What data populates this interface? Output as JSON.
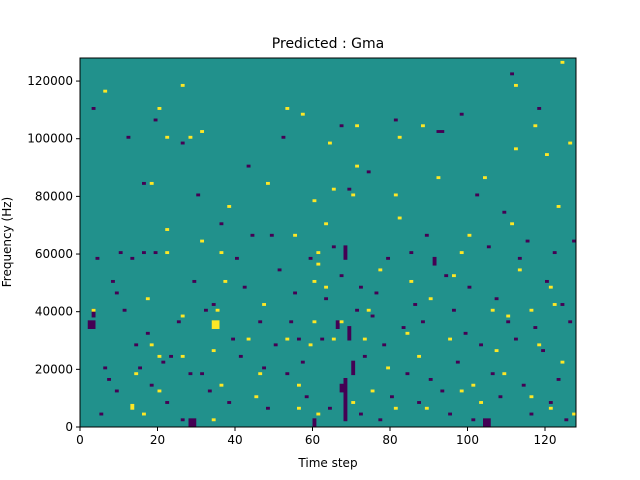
{
  "chart_data": {
    "type": "heatmap",
    "title": "Predicted : Gma",
    "xlabel": "Time step",
    "ylabel": "Frequency (Hz)",
    "xlim": [
      0,
      128
    ],
    "ylim": [
      0,
      128000
    ],
    "x_ticks": [
      0,
      20,
      40,
      60,
      80,
      100,
      120
    ],
    "y_ticks": [
      0,
      20000,
      40000,
      60000,
      80000,
      100000,
      120000
    ],
    "y_tick_labels": [
      "0",
      "20000",
      "40000",
      "60000",
      "80000",
      "100000",
      "120000"
    ],
    "n_time_steps": 128,
    "n_freq_bins": 128,
    "bin_hz": 1000,
    "grid": false,
    "colormap": "viridis",
    "levels": [
      {
        "value": -1,
        "color": "#440154"
      },
      {
        "value": 0,
        "color": "#21918c"
      },
      {
        "value": 1,
        "color": "#fde725"
      }
    ],
    "background_value": 0,
    "cells_note": "value 1 = yellow, value -1 = purple; all other cells 0 (teal). each entry [t0, t1, f0, f1] spans time steps t0..t1 and frequency bins f0..f1 (bin index * 1000 Hz).",
    "high_cells": [
      [
        3,
        4,
        40,
        40
      ],
      [
        6,
        7,
        116,
        116
      ],
      [
        13,
        14,
        6,
        7
      ],
      [
        14,
        15,
        18,
        18
      ],
      [
        16,
        17,
        4,
        4
      ],
      [
        17,
        18,
        44,
        44
      ],
      [
        18,
        19,
        28,
        28
      ],
      [
        18,
        19,
        84,
        84
      ],
      [
        20,
        21,
        12,
        12
      ],
      [
        20,
        21,
        24,
        24
      ],
      [
        20,
        21,
        110,
        110
      ],
      [
        22,
        23,
        60,
        60
      ],
      [
        22,
        23,
        68,
        68
      ],
      [
        22,
        23,
        100,
        100
      ],
      [
        26,
        27,
        24,
        24
      ],
      [
        26,
        27,
        38,
        38
      ],
      [
        26,
        27,
        118,
        118
      ],
      [
        28,
        29,
        100,
        100
      ],
      [
        31,
        32,
        64,
        64
      ],
      [
        31,
        32,
        102,
        102
      ],
      [
        34,
        35,
        2,
        2
      ],
      [
        34,
        35,
        26,
        26
      ],
      [
        34,
        36,
        34,
        36
      ],
      [
        35,
        36,
        40,
        40
      ],
      [
        36,
        37,
        14,
        14
      ],
      [
        36,
        37,
        60,
        60
      ],
      [
        37,
        38,
        50,
        50
      ],
      [
        38,
        39,
        76,
        76
      ],
      [
        43,
        44,
        30,
        30
      ],
      [
        45,
        46,
        10,
        10
      ],
      [
        46,
        47,
        18,
        18
      ],
      [
        47,
        48,
        42,
        42
      ],
      [
        48,
        49,
        84,
        84
      ],
      [
        53,
        54,
        30,
        30
      ],
      [
        53,
        54,
        110,
        110
      ],
      [
        55,
        56,
        66,
        66
      ],
      [
        56,
        57,
        6,
        6
      ],
      [
        56,
        57,
        14,
        14
      ],
      [
        57,
        58,
        108,
        108
      ],
      [
        59,
        60,
        28,
        28
      ],
      [
        60,
        61,
        36,
        36
      ],
      [
        60,
        61,
        50,
        50
      ],
      [
        60,
        61,
        78,
        78
      ],
      [
        61,
        62,
        4,
        4
      ],
      [
        61,
        62,
        56,
        56
      ],
      [
        61,
        62,
        60,
        60
      ],
      [
        63,
        64,
        48,
        48
      ],
      [
        63,
        64,
        70,
        70
      ],
      [
        64,
        65,
        98,
        98
      ],
      [
        65,
        66,
        30,
        30
      ],
      [
        65,
        66,
        82,
        82
      ],
      [
        67,
        68,
        36,
        36
      ],
      [
        70,
        71,
        8,
        8
      ],
      [
        70,
        71,
        80,
        80
      ],
      [
        71,
        72,
        90,
        90
      ],
      [
        71,
        72,
        104,
        104
      ],
      [
        73,
        74,
        30,
        30
      ],
      [
        74,
        75,
        40,
        40
      ],
      [
        75,
        76,
        12,
        12
      ],
      [
        77,
        78,
        54,
        54
      ],
      [
        79,
        80,
        20,
        20
      ],
      [
        81,
        82,
        6,
        6
      ],
      [
        81,
        82,
        80,
        80
      ],
      [
        82,
        83,
        72,
        72
      ],
      [
        82,
        83,
        100,
        100
      ],
      [
        84,
        85,
        32,
        32
      ],
      [
        85,
        86,
        50,
        50
      ],
      [
        87,
        88,
        24,
        24
      ],
      [
        88,
        89,
        104,
        104
      ],
      [
        89,
        90,
        6,
        6
      ],
      [
        90,
        91,
        44,
        44
      ],
      [
        92,
        93,
        86,
        86
      ],
      [
        95,
        96,
        30,
        30
      ],
      [
        96,
        97,
        52,
        52
      ],
      [
        98,
        99,
        12,
        12
      ],
      [
        98,
        99,
        60,
        60
      ],
      [
        100,
        101,
        66,
        66
      ],
      [
        101,
        102,
        14,
        14
      ],
      [
        103,
        104,
        8,
        8
      ],
      [
        104,
        105,
        86,
        86
      ],
      [
        106,
        107,
        40,
        40
      ],
      [
        107,
        108,
        26,
        26
      ],
      [
        109,
        110,
        18,
        18
      ],
      [
        110,
        111,
        38,
        38
      ],
      [
        111,
        112,
        70,
        70
      ],
      [
        112,
        113,
        96,
        96
      ],
      [
        112,
        113,
        118,
        118
      ],
      [
        113,
        114,
        54,
        54
      ],
      [
        116,
        117,
        10,
        10
      ],
      [
        116,
        117,
        40,
        40
      ],
      [
        117,
        118,
        104,
        104
      ],
      [
        118,
        119,
        28,
        28
      ],
      [
        120,
        121,
        94,
        94
      ],
      [
        121,
        122,
        6,
        6
      ],
      [
        121,
        122,
        48,
        48
      ],
      [
        122,
        123,
        42,
        42
      ],
      [
        123,
        124,
        76,
        76
      ],
      [
        124,
        125,
        126,
        126
      ],
      [
        124,
        125,
        22,
        22
      ],
      [
        126,
        127,
        98,
        98
      ],
      [
        127,
        128,
        4,
        4
      ]
    ],
    "low_cells": [
      [
        2,
        4,
        34,
        36
      ],
      [
        3,
        4,
        38,
        40
      ],
      [
        3,
        4,
        110,
        110
      ],
      [
        4,
        5,
        58,
        58
      ],
      [
        5,
        6,
        4,
        4
      ],
      [
        6,
        7,
        20,
        20
      ],
      [
        7,
        8,
        16,
        16
      ],
      [
        8,
        9,
        50,
        50
      ],
      [
        9,
        10,
        12,
        12
      ],
      [
        9,
        10,
        46,
        46
      ],
      [
        10,
        11,
        60,
        60
      ],
      [
        11,
        12,
        40,
        40
      ],
      [
        12,
        13,
        100,
        100
      ],
      [
        13,
        14,
        58,
        58
      ],
      [
        14,
        15,
        28,
        28
      ],
      [
        15,
        16,
        20,
        20
      ],
      [
        16,
        17,
        60,
        60
      ],
      [
        16,
        17,
        84,
        84
      ],
      [
        17,
        18,
        32,
        32
      ],
      [
        18,
        19,
        14,
        14
      ],
      [
        19,
        20,
        60,
        60
      ],
      [
        19,
        20,
        106,
        106
      ],
      [
        21,
        22,
        22,
        22
      ],
      [
        22,
        23,
        8,
        8
      ],
      [
        23,
        24,
        24,
        24
      ],
      [
        25,
        26,
        36,
        36
      ],
      [
        26,
        27,
        2,
        2
      ],
      [
        26,
        27,
        98,
        98
      ],
      [
        28,
        30,
        0,
        2
      ],
      [
        28,
        29,
        18,
        18
      ],
      [
        29,
        30,
        50,
        50
      ],
      [
        30,
        31,
        80,
        80
      ],
      [
        31,
        32,
        18,
        18
      ],
      [
        32,
        33,
        40,
        40
      ],
      [
        33,
        34,
        12,
        12
      ],
      [
        34,
        35,
        42,
        42
      ],
      [
        36,
        37,
        70,
        70
      ],
      [
        38,
        39,
        8,
        8
      ],
      [
        39,
        40,
        30,
        30
      ],
      [
        40,
        41,
        58,
        58
      ],
      [
        41,
        42,
        24,
        24
      ],
      [
        42,
        43,
        48,
        48
      ],
      [
        43,
        44,
        90,
        90
      ],
      [
        44,
        45,
        66,
        66
      ],
      [
        46,
        47,
        36,
        36
      ],
      [
        47,
        48,
        20,
        20
      ],
      [
        48,
        49,
        6,
        6
      ],
      [
        49,
        50,
        66,
        66
      ],
      [
        50,
        51,
        28,
        28
      ],
      [
        51,
        52,
        54,
        54
      ],
      [
        52,
        53,
        100,
        100
      ],
      [
        53,
        54,
        18,
        18
      ],
      [
        54,
        55,
        36,
        36
      ],
      [
        55,
        56,
        46,
        46
      ],
      [
        56,
        57,
        30,
        30
      ],
      [
        57,
        58,
        22,
        22
      ],
      [
        58,
        59,
        10,
        10
      ],
      [
        59,
        60,
        58,
        58
      ],
      [
        60,
        61,
        0,
        2
      ],
      [
        62,
        63,
        30,
        30
      ],
      [
        63,
        64,
        44,
        44
      ],
      [
        64,
        65,
        6,
        6
      ],
      [
        65,
        66,
        62,
        62
      ],
      [
        66,
        67,
        34,
        36
      ],
      [
        67,
        68,
        12,
        14
      ],
      [
        67,
        68,
        52,
        52
      ],
      [
        67,
        68,
        104,
        104
      ],
      [
        68,
        69,
        58,
        62
      ],
      [
        68,
        69,
        2,
        16
      ],
      [
        69,
        70,
        30,
        34
      ],
      [
        69,
        70,
        82,
        82
      ],
      [
        70,
        71,
        18,
        22
      ],
      [
        71,
        72,
        40,
        40
      ],
      [
        72,
        73,
        4,
        4
      ],
      [
        72,
        73,
        48,
        48
      ],
      [
        73,
        74,
        24,
        24
      ],
      [
        74,
        75,
        88,
        88
      ],
      [
        75,
        76,
        38,
        38
      ],
      [
        76,
        77,
        46,
        46
      ],
      [
        77,
        78,
        2,
        2
      ],
      [
        78,
        79,
        28,
        28
      ],
      [
        79,
        80,
        58,
        58
      ],
      [
        80,
        81,
        10,
        10
      ],
      [
        81,
        82,
        106,
        106
      ],
      [
        83,
        84,
        34,
        34
      ],
      [
        84,
        85,
        18,
        18
      ],
      [
        85,
        86,
        60,
        60
      ],
      [
        86,
        87,
        42,
        42
      ],
      [
        87,
        88,
        8,
        8
      ],
      [
        88,
        89,
        36,
        36
      ],
      [
        89,
        90,
        66,
        66
      ],
      [
        90,
        91,
        16,
        16
      ],
      [
        91,
        92,
        56,
        58
      ],
      [
        92,
        94,
        102,
        102
      ],
      [
        93,
        94,
        12,
        12
      ],
      [
        94,
        95,
        52,
        52
      ],
      [
        95,
        96,
        4,
        4
      ],
      [
        96,
        97,
        40,
        40
      ],
      [
        97,
        98,
        22,
        22
      ],
      [
        98,
        99,
        108,
        108
      ],
      [
        99,
        100,
        32,
        32
      ],
      [
        100,
        101,
        48,
        48
      ],
      [
        101,
        102,
        2,
        2
      ],
      [
        102,
        103,
        80,
        80
      ],
      [
        103,
        104,
        28,
        28
      ],
      [
        104,
        106,
        0,
        2
      ],
      [
        105,
        106,
        62,
        62
      ],
      [
        106,
        107,
        18,
        18
      ],
      [
        107,
        108,
        44,
        44
      ],
      [
        108,
        109,
        10,
        10
      ],
      [
        109,
        110,
        74,
        74
      ],
      [
        110,
        111,
        36,
        36
      ],
      [
        111,
        112,
        122,
        122
      ],
      [
        112,
        113,
        30,
        30
      ],
      [
        113,
        114,
        58,
        58
      ],
      [
        114,
        115,
        14,
        14
      ],
      [
        115,
        116,
        64,
        64
      ],
      [
        116,
        117,
        4,
        4
      ],
      [
        117,
        118,
        34,
        34
      ],
      [
        118,
        119,
        110,
        110
      ],
      [
        119,
        120,
        26,
        26
      ],
      [
        120,
        121,
        50,
        50
      ],
      [
        121,
        122,
        8,
        8
      ],
      [
        122,
        123,
        60,
        60
      ],
      [
        123,
        124,
        16,
        16
      ],
      [
        124,
        125,
        42,
        42
      ],
      [
        125,
        126,
        2,
        2
      ],
      [
        126,
        127,
        36,
        36
      ],
      [
        127,
        128,
        64,
        64
      ]
    ]
  }
}
